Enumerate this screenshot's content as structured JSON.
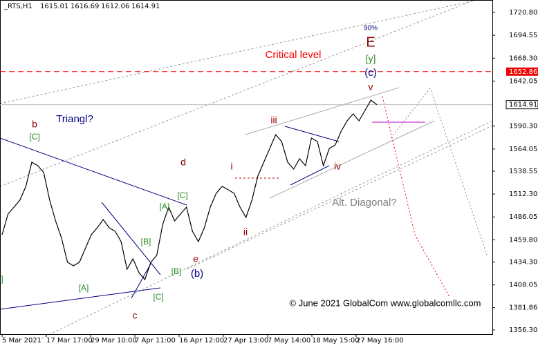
{
  "chart_data": {
    "type": "line",
    "symbol": "_RTS,H1",
    "ohlc": [
      1615.01,
      1616.69,
      1612.06,
      1614.91
    ],
    "xticks": [
      "5 Mar 2021",
      "17 Mar 17:00",
      "29 Mar 10:00",
      "7 Apr 11:00",
      "16 Apr 12:00",
      "27 Apr 13:00",
      "7 May 14:00",
      "18 May 15:00",
      "27 May 16:00"
    ],
    "values": [
      1465.6,
      1489.4,
      1497.3,
      1505.3,
      1521.1,
      1548.9,
      1544.9,
      1537.0,
      1505.3,
      1481.5,
      1461.7,
      1434.0,
      1430.0,
      1434.0,
      1449.8,
      1465.6,
      1473.6,
      1483.1,
      1473.6,
      1469.6,
      1457.7,
      1426.0,
      1437.9,
      1422.1,
      1414.1,
      1434.0,
      1441.9,
      1477.5,
      1497.3,
      1481.5,
      1489.4,
      1497.3,
      1469.6,
      1457.7,
      1473.6,
      1497.3,
      1513.2,
      1521.1,
      1517.2,
      1513.2,
      1497.3,
      1485.5,
      1505.3,
      1533.0,
      1548.9,
      1564.7,
      1580.5,
      1572.6,
      1548.9,
      1540.9,
      1552.8,
      1544.9,
      1576.6,
      1572.6,
      1544.9,
      1564.7,
      1568.7,
      1584.5,
      1596.4,
      1604.3,
      1596.4,
      1608.3,
      1620.2,
      1614.91
    ],
    "color": "#000000",
    "ylim": [
      1351.5,
      1735.1
    ],
    "yticks": [
      {
        "value": 1720.8,
        "label": "1720.80"
      },
      {
        "value": 1694.55,
        "label": "1694.55"
      },
      {
        "value": 1668.3,
        "label": "1668.30"
      },
      {
        "value": 1642.05,
        "label": "1642.05"
      },
      {
        "value": 1590.3,
        "label": "1590.30"
      },
      {
        "value": 1564.05,
        "label": "1564.05"
      },
      {
        "value": 1538.55,
        "label": "1538.55"
      },
      {
        "value": 1512.3,
        "label": "1512.30"
      },
      {
        "value": 1486.05,
        "label": "1486.05"
      },
      {
        "value": 1459.8,
        "label": "1459.80"
      },
      {
        "value": 1434.3,
        "label": "1434.30"
      },
      {
        "value": 1408.05,
        "label": "1408.05"
      },
      {
        "value": 1381.86,
        "label": "1381.86"
      },
      {
        "value": 1356.3,
        "label": "1356.30"
      }
    ],
    "critical_level": 1652.86,
    "current_price": 1614.91,
    "annotations": [
      {
        "text": "b",
        "color": "#8b0000"
      },
      {
        "text": "[C]",
        "color": "#228b22"
      },
      {
        "text": "Triangl?",
        "color": "#000080"
      },
      {
        "text": "d",
        "color": "#8b0000"
      },
      {
        "text": "[C]",
        "color": "#228b22"
      },
      {
        "text": "[A]",
        "color": "#228b22"
      },
      {
        "text": "[B]",
        "color": "#228b22"
      },
      {
        "text": "[A]",
        "color": "#228b22"
      },
      {
        "text": "[C]",
        "color": "#228b22"
      },
      {
        "text": "c",
        "color": "#8b0000"
      },
      {
        "text": "e",
        "color": "#8b0000"
      },
      {
        "text": "[B]",
        "color": "#228b22"
      },
      {
        "text": "(b)",
        "color": "#000080"
      },
      {
        "text": "]",
        "color": "#228b22"
      },
      {
        "text": "i",
        "color": "#8b0000"
      },
      {
        "text": "ii",
        "color": "#8b0000"
      },
      {
        "text": "iii",
        "color": "#8b0000"
      },
      {
        "text": "iv",
        "color": "#8b0000"
      },
      {
        "text": "v",
        "color": "#8b0000"
      },
      {
        "text": "(c)",
        "color": "#000080"
      },
      {
        "text": "[y]",
        "color": "#228b22"
      },
      {
        "text": "E",
        "color": "#8b0000"
      },
      {
        "text": "90%",
        "color": "#000080"
      },
      {
        "text": "Critical level",
        "color": "#ff0000"
      },
      {
        "text": "Alt. Diagonal?",
        "color": "#808080"
      },
      {
        "text": "© June 2021 GlobalCom www.globalcomllc.com",
        "color": "#000000"
      }
    ]
  }
}
